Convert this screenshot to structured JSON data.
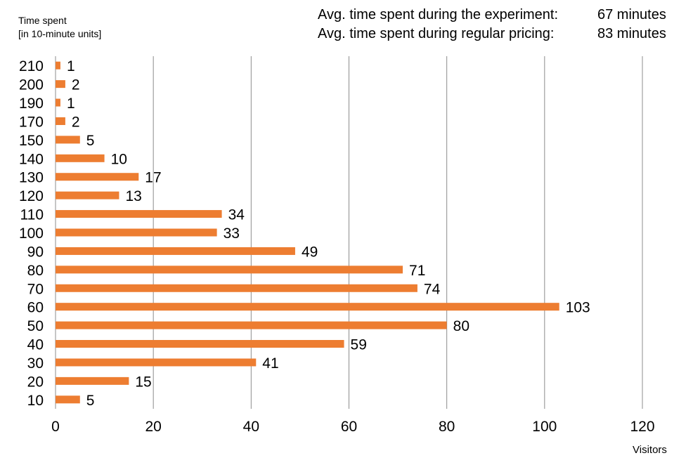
{
  "chart_data": {
    "type": "bar",
    "orientation": "horizontal",
    "ylabel": [
      "Time spent",
      "[in 10-minute units]"
    ],
    "xlabel": "Visitors",
    "categories": [
      "210",
      "200",
      "190",
      "170",
      "150",
      "140",
      "130",
      "120",
      "110",
      "100",
      "90",
      "80",
      "70",
      "60",
      "50",
      "40",
      "30",
      "20",
      "10"
    ],
    "values": [
      1,
      2,
      1,
      2,
      5,
      10,
      17,
      13,
      34,
      33,
      49,
      71,
      74,
      103,
      80,
      59,
      41,
      15,
      5
    ],
    "xlim": [
      0,
      120
    ],
    "xticks": [
      0,
      20,
      40,
      60,
      80,
      100,
      120
    ],
    "grid": "vertical",
    "bar_color": "#ED7D31",
    "grid_color": "#8C8C8C",
    "data_labels": true
  },
  "stats": [
    {
      "label": "Avg. time spent during the experiment:",
      "value": "67 minutes"
    },
    {
      "label": "Avg. time spent during regular pricing:",
      "value": "83 minutes"
    }
  ]
}
